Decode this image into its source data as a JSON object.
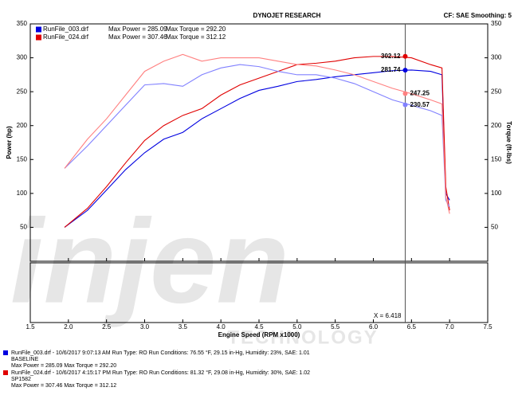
{
  "chart_data": {
    "type": "line",
    "title": "DYNOJET RESEARCH",
    "subtitle": "CF: SAE Smoothing: 5",
    "xlabel": "Engine Speed (RPM x1000)",
    "ylabel": "Power (hp)",
    "y2label": "Torque (ft-lbs)",
    "watermark": "injen",
    "watermark_sub": "TECHNOLOGY",
    "xlim": [
      1.5,
      7.5
    ],
    "ylim": [
      0,
      350
    ],
    "y2lim": [
      0,
      350
    ],
    "xticks": [
      {
        "value": 1.5,
        "label": "1.5"
      },
      {
        "value": 2,
        "label": "2.0"
      },
      {
        "value": 2.5,
        "label": "2.5"
      },
      {
        "value": 3,
        "label": "3.0"
      },
      {
        "value": 3.5,
        "label": "3.5"
      },
      {
        "value": 4,
        "label": "4.0"
      },
      {
        "value": 4.5,
        "label": "4.5"
      },
      {
        "value": 5,
        "label": "5.0"
      },
      {
        "value": 5.5,
        "label": "5.5"
      },
      {
        "value": 6,
        "label": "6.0"
      },
      {
        "value": 6.5,
        "label": "6.5"
      },
      {
        "value": 7,
        "label": "7.0"
      },
      {
        "value": 7.5,
        "label": "7.5"
      }
    ],
    "yticks": [
      50,
      100,
      150,
      200,
      250,
      300,
      350
    ],
    "y2ticks": [
      50,
      100,
      150,
      200,
      250,
      300,
      350
    ],
    "cursor": {
      "value": 6.418,
      "label": "X = 6.418"
    },
    "legend": [
      {
        "name": "RunFile_003.drf",
        "text": "Max Power = 285.09",
        "text2": "Max Torque = 292.20",
        "color": "#0000e0"
      },
      {
        "name": "RunFile_024.drf",
        "text": "Max Power = 307.46",
        "text2": "Max Torque = 312.12",
        "color": "#e00000"
      }
    ],
    "x": [
      1.95,
      2.25,
      2.5,
      2.75,
      3.0,
      3.25,
      3.5,
      3.75,
      4.0,
      4.25,
      4.5,
      4.75,
      5.0,
      5.25,
      5.5,
      5.75,
      6.0,
      6.25,
      6.5,
      6.75,
      6.9,
      6.95,
      7.0
    ],
    "series": [
      {
        "color": "#0000e0",
        "axis": "y",
        "cursor_value": 281.74,
        "values": [
          50,
          75,
          105,
          135,
          160,
          180,
          190,
          210,
          225,
          240,
          252,
          258,
          265,
          268,
          272,
          275,
          278,
          281,
          282,
          280,
          275,
          100,
          90
        ]
      },
      {
        "color": "#e00000",
        "axis": "y",
        "cursor_value": 302.12,
        "values": [
          50,
          78,
          110,
          145,
          178,
          200,
          215,
          225,
          245,
          260,
          270,
          280,
          290,
          292,
          295,
          300,
          302,
          302,
          300,
          290,
          285,
          110,
          75
        ]
      },
      {
        "color": "#8080ff",
        "axis": "y2",
        "cursor_value": 230.57,
        "values": [
          137,
          170,
          200,
          230,
          260,
          262,
          258,
          275,
          285,
          290,
          287,
          280,
          275,
          275,
          270,
          262,
          250,
          238,
          230,
          222,
          215,
          90,
          80
        ]
      },
      {
        "color": "#ff8080",
        "axis": "y2",
        "cursor_value": 247.25,
        "values": [
          137,
          180,
          210,
          245,
          280,
          295,
          305,
          295,
          300,
          300,
          300,
          295,
          290,
          288,
          282,
          275,
          265,
          255,
          247,
          238,
          232,
          95,
          70
        ]
      }
    ]
  },
  "footer": {
    "runs": [
      {
        "color": "#0000e0",
        "lines": [
          "RunFile_003.drf - 10/6/2017 9:07:13 AM  Run Type: RO  Run Conditions: 76.55 °F, 29.15 in-Hg,  Humidity:  23%,  SAE: 1.01",
          "BASELINE",
          "Max Power = 285.09  Max Torque = 292.20"
        ]
      },
      {
        "color": "#e00000",
        "lines": [
          "RunFile_024.drf - 10/6/2017 4:15:17 PM  Run Type: RO  Run Conditions: 81.32 °F, 29.08 in-Hg,  Humidity:  30%,  SAE: 1.02",
          "SP1582",
          "Max Power = 307.46  Max Torque = 312.12"
        ]
      }
    ]
  }
}
